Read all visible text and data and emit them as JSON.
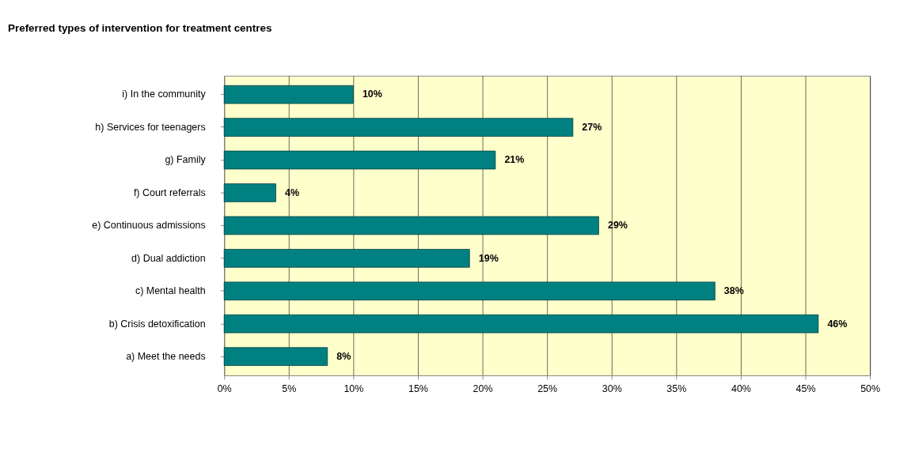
{
  "chart_data": {
    "type": "bar",
    "orientation": "horizontal",
    "title": "Preferred types of intervention for treatment centres",
    "categories": [
      "i) In the community",
      "h) Services for teenagers",
      "g) Family",
      "f) Court referrals",
      "e) Continuous admissions",
      "d) Dual addiction",
      "c) Mental health",
      "b) Crisis detoxification",
      "a) Meet the needs"
    ],
    "values": [
      10,
      27,
      21,
      4,
      29,
      19,
      38,
      46,
      8
    ],
    "value_labels": [
      "10%",
      "27%",
      "21%",
      "4%",
      "29%",
      "19%",
      "38%",
      "46%",
      "8%"
    ],
    "color": "#008080",
    "xlim": [
      0,
      50
    ],
    "xticks": [
      {
        "value": 0,
        "label": "0%"
      },
      {
        "value": 5,
        "label": "5%"
      },
      {
        "value": 10,
        "label": "10%"
      },
      {
        "value": 15,
        "label": "15%"
      },
      {
        "value": 20,
        "label": "20%"
      },
      {
        "value": 25,
        "label": "25%"
      },
      {
        "value": 30,
        "label": "30%"
      },
      {
        "value": 35,
        "label": "35%"
      },
      {
        "value": 40,
        "label": "40%"
      },
      {
        "value": 45,
        "label": "45%"
      },
      {
        "value": 50,
        "label": "50%"
      }
    ],
    "grid": "x"
  }
}
